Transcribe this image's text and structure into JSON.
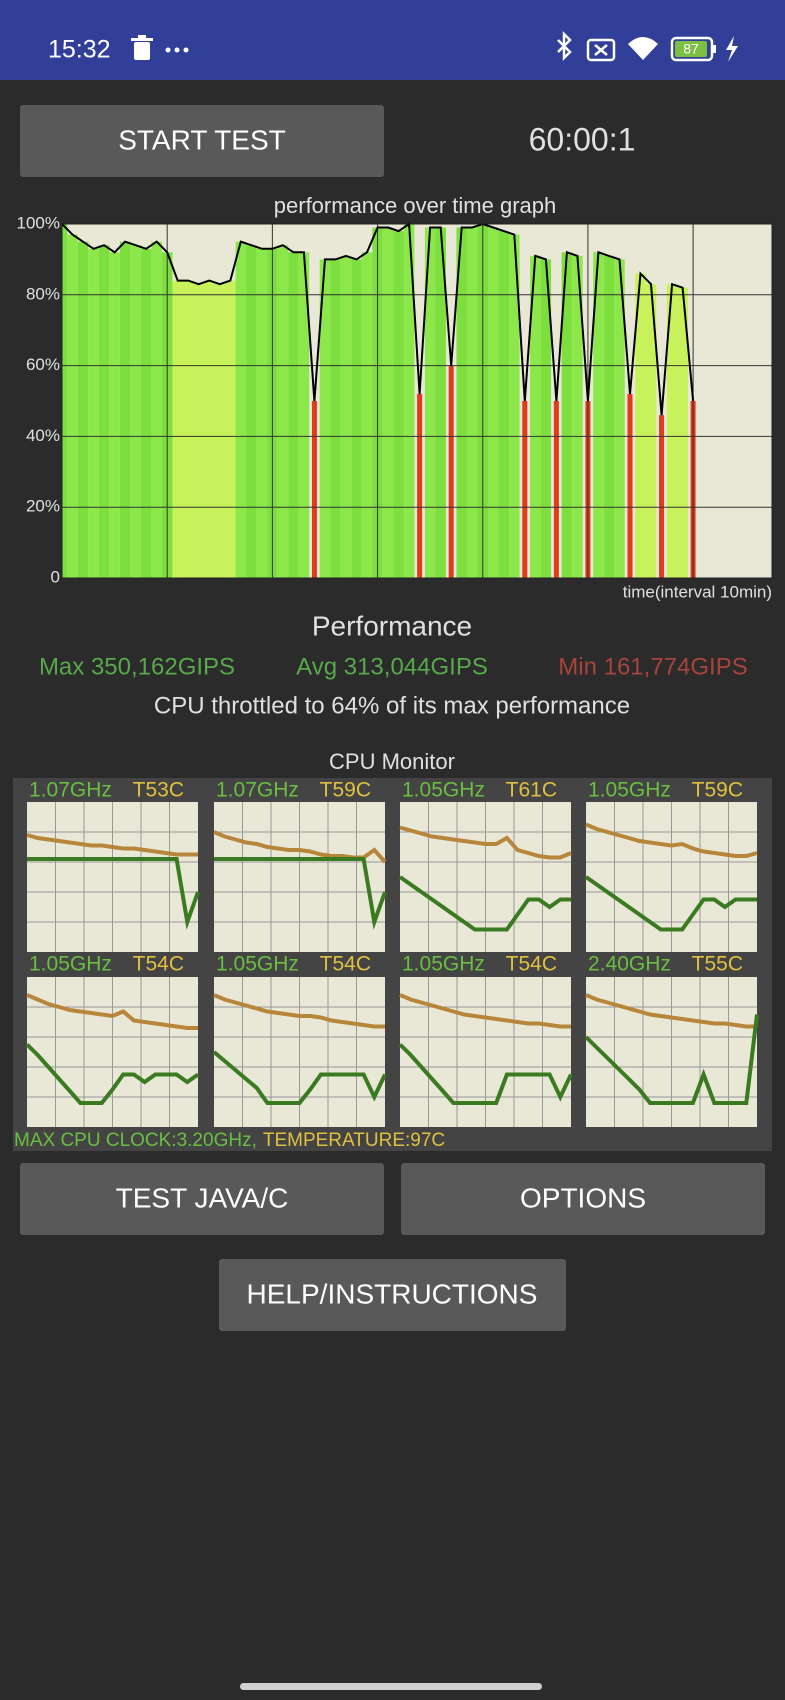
{
  "status_bar": {
    "time": "15:32",
    "battery": "87"
  },
  "controls": {
    "start_button": "START TEST",
    "timer": "60:00:1"
  },
  "chart_data": {
    "type": "line",
    "title": "performance over time graph",
    "x_label": "time(interval 10min)",
    "x": [
      0,
      1,
      2,
      3,
      4,
      5,
      6,
      7,
      8,
      9,
      10,
      11,
      12,
      13,
      14,
      15,
      16,
      17,
      18,
      19,
      20,
      21,
      22,
      23,
      24,
      25,
      26,
      27,
      28,
      29,
      30,
      31,
      32,
      33,
      34,
      35,
      36,
      37,
      38,
      39,
      40,
      41,
      42,
      43,
      44,
      45,
      46,
      47,
      48,
      49,
      50,
      51,
      52,
      53,
      54,
      55,
      56,
      57,
      58,
      59,
      60
    ],
    "values": [
      100,
      97,
      95,
      93,
      94,
      92,
      95,
      94,
      93,
      95,
      92,
      84,
      84,
      83,
      84,
      83,
      84,
      95,
      94,
      93,
      93,
      94,
      92,
      92,
      50,
      90,
      90,
      91,
      90,
      92,
      99,
      99,
      98,
      100,
      52,
      99,
      99,
      60,
      99,
      99,
      100,
      99,
      98,
      97,
      50,
      91,
      90,
      50,
      92,
      91,
      50,
      92,
      91,
      90,
      52,
      86,
      83,
      46,
      83,
      82,
      50
    ],
    "xlim": [
      0,
      67.5
    ],
    "xticks": [
      10,
      20,
      30,
      40,
      50,
      60
    ],
    "ylim": [
      0,
      100
    ],
    "yticks": [
      0,
      {
        "value": 20,
        "label": "20%"
      },
      {
        "value": 40,
        "label": "40%"
      },
      {
        "value": 60,
        "label": "60%"
      },
      {
        "value": 80,
        "label": "80%"
      },
      {
        "value": 100,
        "label": "100%"
      }
    ],
    "grid": true,
    "color": "#000000"
  },
  "performance": {
    "heading": "Performance",
    "max": "Max 350,162GIPS",
    "avg": "Avg 313,044GIPS",
    "min": "Min 161,774GIPS",
    "throttle": "CPU throttled to 64% of its max performance"
  },
  "cpu_monitor": {
    "title": "CPU Monitor",
    "cores": [
      {
        "freq": "1.07GHz",
        "temp": "T53C",
        "temp_line": [
          78,
          76,
          75,
          74,
          73,
          72,
          71,
          71,
          70,
          69,
          69,
          68,
          67,
          66,
          65,
          65,
          65
        ],
        "freq_line": [
          62,
          62,
          62,
          62,
          62,
          62,
          62,
          62,
          62,
          62,
          62,
          62,
          62,
          62,
          62,
          20,
          40
        ]
      },
      {
        "freq": "1.07GHz",
        "temp": "T59C",
        "temp_line": [
          80,
          77,
          75,
          73,
          72,
          70,
          69,
          68,
          68,
          67,
          65,
          64,
          64,
          63,
          63,
          68,
          60
        ],
        "freq_line": [
          62,
          62,
          62,
          62,
          62,
          62,
          62,
          62,
          62,
          62,
          62,
          62,
          62,
          62,
          62,
          20,
          40
        ]
      },
      {
        "freq": "1.05GHz",
        "temp": "T61C",
        "temp_line": [
          83,
          81,
          79,
          77,
          76,
          75,
          74,
          73,
          72,
          72,
          76,
          68,
          66,
          64,
          63,
          63,
          66
        ],
        "freq_line": [
          50,
          45,
          40,
          35,
          30,
          25,
          20,
          15,
          15,
          15,
          15,
          25,
          35,
          35,
          30,
          35,
          35
        ]
      },
      {
        "freq": "1.05GHz",
        "temp": "T59C",
        "temp_line": [
          85,
          82,
          80,
          78,
          76,
          74,
          73,
          72,
          71,
          72,
          69,
          67,
          66,
          65,
          64,
          64,
          66
        ],
        "freq_line": [
          50,
          45,
          40,
          35,
          30,
          25,
          20,
          15,
          15,
          15,
          25,
          35,
          35,
          30,
          35,
          35,
          35
        ]
      },
      {
        "freq": "1.05GHz",
        "temp": "T54C",
        "temp_line": [
          88,
          85,
          82,
          80,
          78,
          77,
          76,
          75,
          74,
          77,
          71,
          70,
          69,
          68,
          67,
          66,
          66
        ],
        "freq_line": [
          55,
          48,
          40,
          32,
          24,
          16,
          16,
          16,
          25,
          35,
          35,
          30,
          35,
          35,
          35,
          30,
          35
        ]
      },
      {
        "freq": "1.05GHz",
        "temp": "T54C",
        "temp_line": [
          88,
          85,
          83,
          81,
          79,
          77,
          76,
          75,
          74,
          74,
          73,
          71,
          70,
          69,
          68,
          67,
          67
        ],
        "freq_line": [
          50,
          44,
          38,
          32,
          26,
          16,
          16,
          16,
          16,
          25,
          35,
          35,
          35,
          35,
          35,
          20,
          35
        ]
      },
      {
        "freq": "1.05GHz",
        "temp": "T54C",
        "temp_line": [
          88,
          85,
          83,
          81,
          79,
          77,
          75,
          74,
          73,
          72,
          71,
          70,
          69,
          69,
          68,
          67,
          67
        ],
        "freq_line": [
          55,
          48,
          40,
          32,
          24,
          16,
          16,
          16,
          16,
          16,
          35,
          35,
          35,
          35,
          35,
          20,
          35
        ]
      },
      {
        "freq": "2.40GHz",
        "temp": "T55C",
        "temp_line": [
          88,
          85,
          83,
          81,
          79,
          77,
          75,
          74,
          73,
          72,
          71,
          70,
          69,
          69,
          68,
          67,
          67
        ],
        "freq_line": [
          60,
          53,
          46,
          39,
          32,
          25,
          16,
          16,
          16,
          16,
          16,
          35,
          16,
          16,
          16,
          16,
          75
        ]
      }
    ],
    "max_clock": "MAX CPU CLOCK:3.20GHz,",
    "temperature": "TEMPERATURE:97C"
  },
  "buttons": {
    "test": "TEST JAVA/C",
    "options": "OPTIONS",
    "help": "HELP/INSTRUCTIONS"
  }
}
